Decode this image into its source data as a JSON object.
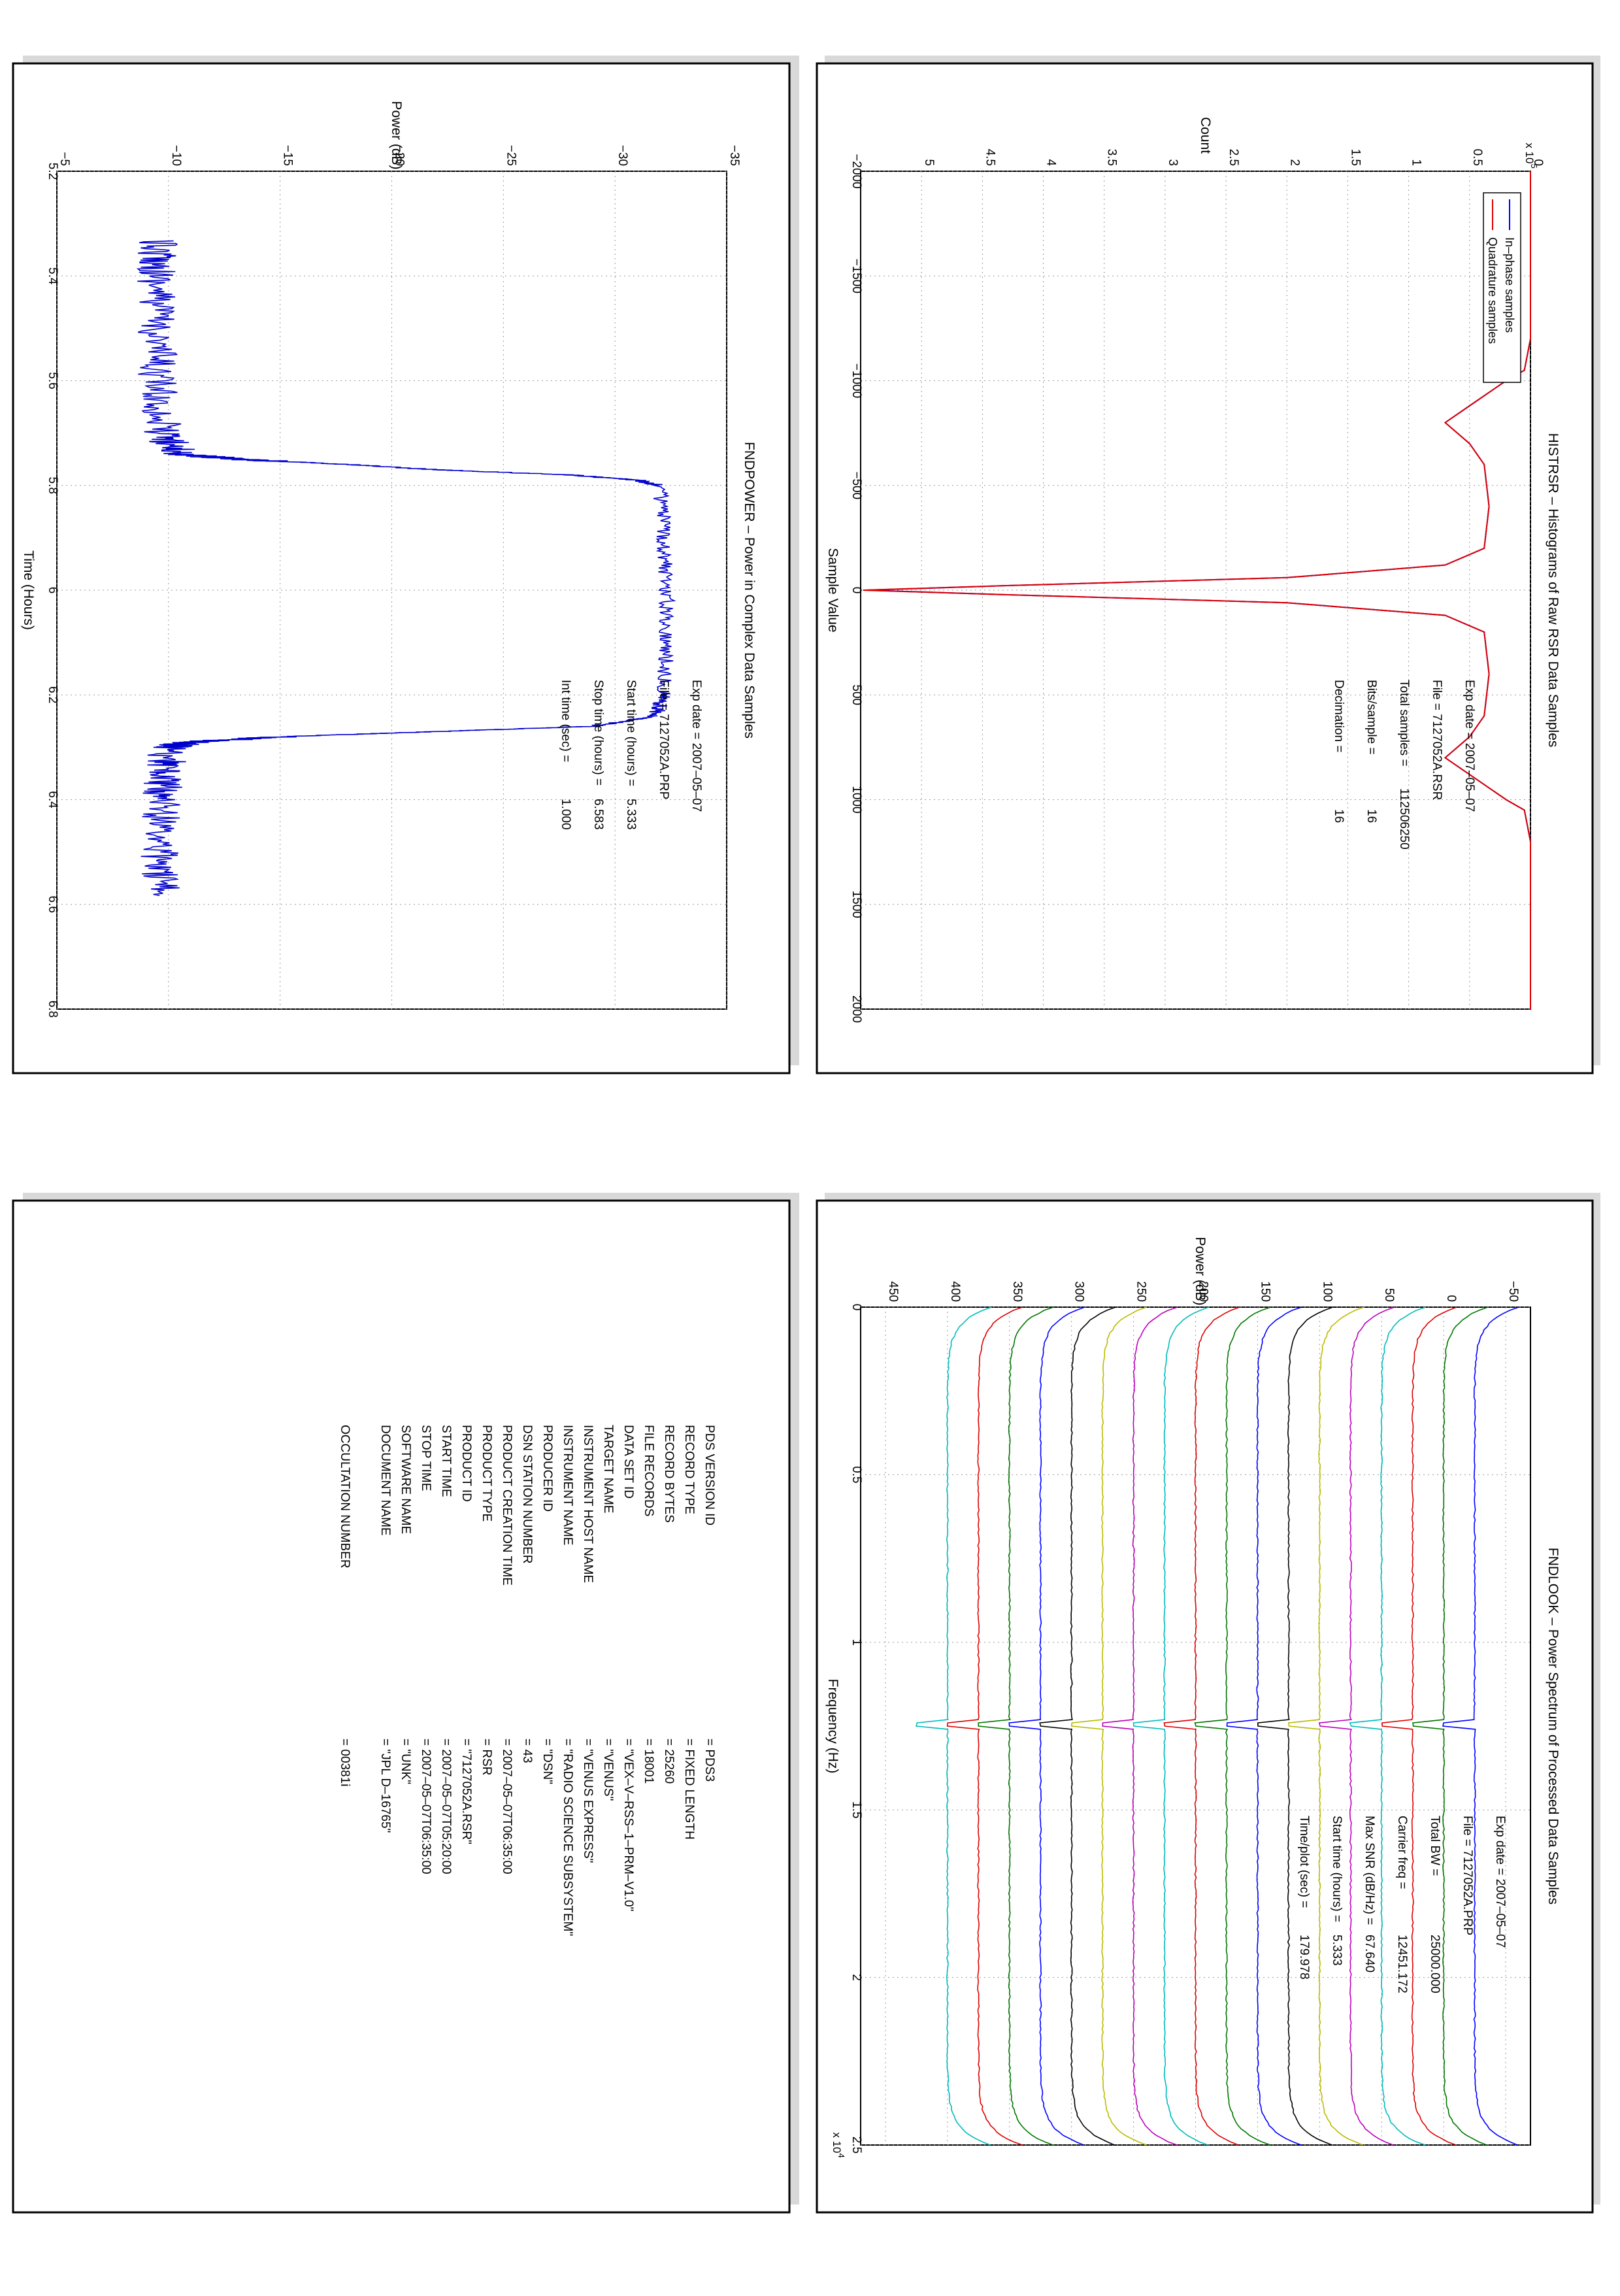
{
  "histrsr": {
    "title": "HISTRSR – Histograms of Raw RSR Data Samples",
    "xlabel": "Sample Value",
    "ylabel": "Count",
    "exponent": "x 10",
    "exponent_power": "5",
    "legend": [
      "In–phase samples",
      "Quadrature samples"
    ],
    "info": {
      "exp_date": "Exp date = 2007–05–07",
      "file": "File = 7127052A.RSR",
      "total_samples_label": "Total samples =",
      "total_samples_value": "112506250",
      "bits_label": "Bits/sample    =",
      "bits_value": "16",
      "decimation_label": "Decimation    =",
      "decimation_value": "16"
    }
  },
  "fndpower": {
    "title": "FNDPOWER – Power in Complex Data Samples",
    "xlabel": "Time (Hours)",
    "ylabel": "Power (dB)",
    "info": {
      "exp_date": "Exp date = 2007–05–07",
      "file": "File = 7127052A.PRP",
      "start_label": "Start time (hours) =",
      "start_value": "5.333",
      "stop_label": "Stop time (hours) =",
      "stop_value": "6.583",
      "int_label": "Int time (sec) =",
      "int_value": "1.000"
    }
  },
  "fndlook": {
    "title": "FNDLOOK – Power Spectrum of Processed Data Samples",
    "xlabel": "Frequency (Hz)",
    "ylabel": "Power (dB)",
    "exponent": "x 10",
    "exponent_power": "4",
    "info": {
      "exp_date": "Exp date = 2007–05–07",
      "file": "File = 7127052A.PRP",
      "bw_label": "Total BW =",
      "bw_value": "25000.000",
      "carrier_label": "Carrier freq =",
      "carrier_value": "12451.172",
      "snr_label": "Max SNR (dB/Hz) =",
      "snr_value": "67.640",
      "start_label": "Start time (hours) =",
      "start_value": "5.333",
      "timeplot_label": "Time/plot (sec) =",
      "timeplot_value": "179.978"
    }
  },
  "label": {
    "rows": [
      {
        "key": "PDS VERSION ID",
        "value": "=  PDS3"
      },
      {
        "key": "RECORD TYPE",
        "value": "=  FIXED LENGTH"
      },
      {
        "key": "RECORD BYTES",
        "value": "=  25260"
      },
      {
        "key": "FILE RECORDS",
        "value": "=  18001"
      },
      {
        "key": "DATA SET ID",
        "value": "=  \"VEX–V–RSS–1–PRM–V1.0\""
      },
      {
        "key": "TARGET NAME",
        "value": "=  \"VENUS\""
      },
      {
        "key": "INSTRUMENT HOST NAME",
        "value": "=  \"VENUS EXPRESS\""
      },
      {
        "key": "INSTRUMENT NAME",
        "value": "=  \"RADIO SCIENCE SUBSYSTEM\""
      },
      {
        "key": "PRODUCER ID",
        "value": "=  \"DSN\""
      },
      {
        "key": "DSN STATION NUMBER",
        "value": "=  43"
      },
      {
        "key": "PRODUCT CREATION TIME",
        "value": "=  2007–05–07T06:35:00"
      },
      {
        "key": "PRODUCT TYPE",
        "value": "=  RSR"
      },
      {
        "key": "PRODUCT ID",
        "value": "=  \"7127052A.RSR\""
      },
      {
        "key": "START TIME",
        "value": "=  2007–05–07T05:20:00"
      },
      {
        "key": "STOP TIME",
        "value": "=  2007–05–07T06:35:00"
      },
      {
        "key": "SOFTWARE NAME",
        "value": "=  \"UNK\""
      },
      {
        "key": "DOCUMENT NAME",
        "value": "=  \"JPL D–16765\""
      },
      {
        "key": "",
        "value": ""
      },
      {
        "key": "OCCULTATION NUMBER",
        "value": "=  00381i"
      }
    ]
  },
  "chart_data": [
    {
      "type": "line",
      "title": "HISTRSR – Histograms of Raw RSR Data Samples",
      "xlabel": "Sample Value",
      "ylabel": "Count",
      "xlim": [
        -2000,
        2000
      ],
      "ylim": [
        0,
        550000
      ],
      "x_ticks": [
        -2000,
        -1500,
        -1000,
        -500,
        0,
        500,
        1000,
        1500,
        2000
      ],
      "y_ticks": [
        0,
        0.5,
        1,
        1.5,
        2,
        2.5,
        3,
        3.5,
        4,
        4.5,
        5
      ],
      "y_multiplier": "x 10^5",
      "grid": true,
      "legend_position": "top-left",
      "series": [
        {
          "name": "In–phase samples",
          "color": "#0000ff",
          "x": [
            -2000,
            -1200,
            -1050,
            -1000,
            -900,
            -800,
            -700,
            -600,
            -400,
            -200,
            -120,
            -60,
            -20,
            0,
            20,
            60,
            120,
            200,
            400,
            600,
            700,
            800,
            900,
            1000,
            1050,
            1200,
            2000
          ],
          "y": [
            0,
            0,
            5000,
            20000,
            45000,
            70000,
            50000,
            38000,
            34000,
            38000,
            70000,
            200000,
            440000,
            545000,
            440000,
            200000,
            70000,
            38000,
            34000,
            38000,
            50000,
            70000,
            45000,
            20000,
            5000,
            0,
            0
          ]
        },
        {
          "name": "Quadrature samples",
          "color": "#dd0000",
          "x": [
            -2000,
            -1200,
            -1050,
            -1000,
            -900,
            -800,
            -700,
            -600,
            -400,
            -200,
            -120,
            -60,
            -20,
            0,
            20,
            60,
            120,
            200,
            400,
            600,
            700,
            800,
            900,
            1000,
            1050,
            1200,
            2000
          ],
          "y": [
            0,
            0,
            5000,
            20000,
            45000,
            70000,
            50000,
            38000,
            34000,
            38000,
            70000,
            200000,
            440000,
            548000,
            440000,
            200000,
            70000,
            38000,
            34000,
            38000,
            50000,
            70000,
            45000,
            20000,
            5000,
            0,
            0
          ]
        }
      ]
    },
    {
      "type": "line",
      "title": "FNDPOWER – Power in Complex Data Samples",
      "xlabel": "Time (Hours)",
      "ylabel": "Power (dB)",
      "xlim": [
        5.2,
        6.8
      ],
      "ylim": [
        -35,
        -5
      ],
      "x_ticks": [
        5.2,
        5.4,
        5.6,
        5.8,
        6,
        6.2,
        6.4,
        6.6,
        6.8
      ],
      "y_ticks": [
        -35,
        -30,
        -25,
        -20,
        -15,
        -10,
        -5
      ],
      "grid": true,
      "series": [
        {
          "name": "",
          "color": "#0000cc",
          "x": [
            5.333,
            5.4,
            5.5,
            5.6,
            5.7,
            5.74,
            5.75,
            5.76,
            5.77,
            5.78,
            5.79,
            5.8,
            5.9,
            6.0,
            6.1,
            6.2,
            6.24,
            6.26,
            6.27,
            6.28,
            6.29,
            6.3,
            6.35,
            6.4,
            6.5,
            6.583
          ],
          "y": [
            -9.5,
            -9.5,
            -9.5,
            -9.5,
            -9.7,
            -10.5,
            -13,
            -18,
            -22,
            -28,
            -31,
            -32,
            -32.2,
            -32.3,
            -32.3,
            -32.2,
            -31.8,
            -29,
            -22,
            -15,
            -11,
            -10,
            -9.8,
            -9.7,
            -9.6,
            -9.6
          ]
        }
      ]
    },
    {
      "type": "line",
      "title": "FNDLOOK – Power Spectrum of Processed Data Samples",
      "xlabel": "Frequency (Hz)",
      "ylabel": "Power (dB)",
      "xlim": [
        0,
        25000
      ],
      "ylim": [
        -70,
        470
      ],
      "x_ticks": [
        0,
        0.5,
        1,
        1.5,
        2,
        2.5
      ],
      "x_multiplier": "x 10^4",
      "y_ticks": [
        -50,
        0,
        50,
        100,
        150,
        200,
        250,
        300,
        350,
        400,
        450
      ],
      "grid": true,
      "carrier_hz": 12451.172,
      "series": [
        {
          "name": "",
          "color": "#0000ff",
          "offset": -60
        },
        {
          "name": "",
          "color": "#007700",
          "offset": -35
        },
        {
          "name": "",
          "color": "#dd0000",
          "offset": -10
        },
        {
          "name": "",
          "color": "#00bbbb",
          "offset": 15
        },
        {
          "name": "",
          "color": "#bb00bb",
          "offset": 40
        },
        {
          "name": "",
          "color": "#bbbb00",
          "offset": 65
        },
        {
          "name": "",
          "color": "#000000",
          "offset": 90
        },
        {
          "name": "",
          "color": "#0000ff",
          "offset": 115
        },
        {
          "name": "",
          "color": "#007700",
          "offset": 140
        },
        {
          "name": "",
          "color": "#dd0000",
          "offset": 165
        },
        {
          "name": "",
          "color": "#00bbbb",
          "offset": 190
        },
        {
          "name": "",
          "color": "#bb00bb",
          "offset": 215
        },
        {
          "name": "",
          "color": "#bbbb00",
          "offset": 240
        },
        {
          "name": "",
          "color": "#000000",
          "offset": 265
        },
        {
          "name": "",
          "color": "#0000ff",
          "offset": 290
        },
        {
          "name": "",
          "color": "#007700",
          "offset": 315
        },
        {
          "name": "",
          "color": "#dd0000",
          "offset": 340
        },
        {
          "name": "",
          "color": "#00bbbb",
          "offset": 365
        }
      ]
    }
  ]
}
